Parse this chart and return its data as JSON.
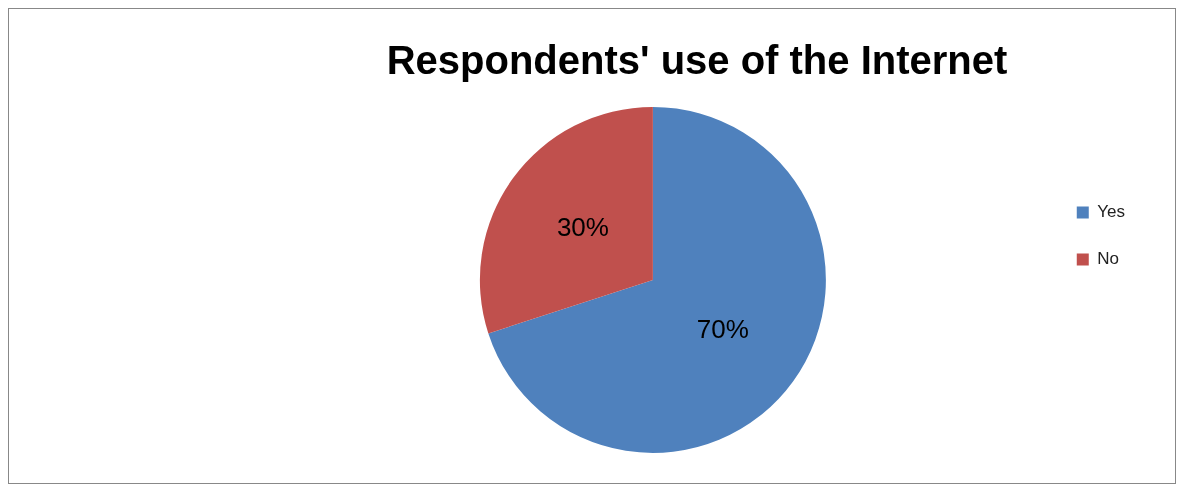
{
  "chart_data": {
    "type": "pie",
    "title": "Respondents' use of the Internet",
    "categories": [
      "Yes",
      "No"
    ],
    "values": [
      70,
      30
    ],
    "colors": [
      "#4f81bd",
      "#c0504d"
    ],
    "value_labels": [
      "70%",
      "30%"
    ],
    "legend": "right"
  }
}
